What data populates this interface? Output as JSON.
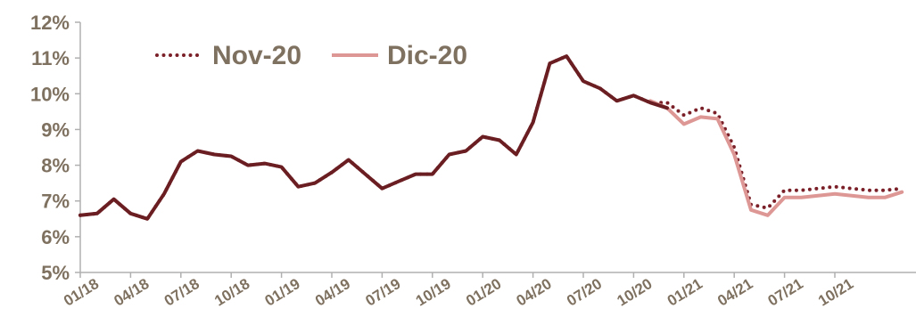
{
  "chart_data": {
    "type": "line",
    "title": "",
    "xlabel": "",
    "ylabel": "",
    "ylim": [
      5,
      12
    ],
    "y_ticks": [
      "5%",
      "6%",
      "7%",
      "8%",
      "9%",
      "10%",
      "11%",
      "12%"
    ],
    "x_ticks": [
      "01/18",
      "04/18",
      "07/18",
      "10/18",
      "01/19",
      "04/19",
      "07/19",
      "10/19",
      "01/20",
      "04/20",
      "07/20",
      "10/20",
      "01/21",
      "04/21",
      "07/21",
      "10/21"
    ],
    "legend_position": "top-left",
    "grid": false,
    "series": [
      {
        "name": "Nov-20",
        "style": "dotted",
        "color": "#7b2028",
        "values": [
          6.6,
          6.65,
          7.05,
          6.65,
          6.5,
          7.2,
          8.1,
          8.4,
          8.3,
          8.25,
          8.0,
          8.05,
          7.95,
          7.4,
          7.5,
          7.8,
          8.15,
          7.75,
          7.35,
          7.55,
          7.75,
          7.75,
          8.3,
          8.4,
          8.8,
          8.7,
          8.3,
          9.2,
          10.85,
          11.05,
          10.35,
          10.15,
          9.8,
          9.95,
          9.75,
          9.75,
          9.4,
          9.6,
          9.45,
          8.5,
          6.9,
          6.8,
          7.3,
          7.3,
          7.35,
          7.4,
          7.35,
          7.3,
          7.3,
          7.35
        ]
      },
      {
        "name": "Dic-20",
        "style": "solid",
        "color": "#dd9794",
        "values": [
          null,
          null,
          null,
          null,
          null,
          null,
          null,
          null,
          null,
          null,
          null,
          null,
          null,
          null,
          null,
          null,
          null,
          null,
          null,
          null,
          null,
          null,
          null,
          null,
          null,
          null,
          null,
          null,
          null,
          null,
          null,
          null,
          null,
          null,
          9.8,
          9.6,
          9.15,
          9.35,
          9.3,
          8.3,
          6.75,
          6.6,
          7.1,
          7.1,
          7.15,
          7.2,
          7.15,
          7.1,
          7.1,
          7.25
        ]
      },
      {
        "name": "",
        "style": "solid",
        "color": "#6b1e22",
        "values": [
          6.6,
          6.65,
          7.05,
          6.65,
          6.5,
          7.2,
          8.1,
          8.4,
          8.3,
          8.25,
          8.0,
          8.05,
          7.95,
          7.4,
          7.5,
          7.8,
          8.15,
          7.75,
          7.35,
          7.55,
          7.75,
          7.75,
          8.3,
          8.4,
          8.8,
          8.7,
          8.3,
          9.2,
          10.85,
          11.05,
          10.35,
          10.15,
          9.8,
          9.95,
          9.75,
          9.6,
          null,
          null,
          null,
          null,
          null,
          null,
          null,
          null,
          null,
          null,
          null,
          null,
          null,
          null
        ]
      }
    ]
  }
}
